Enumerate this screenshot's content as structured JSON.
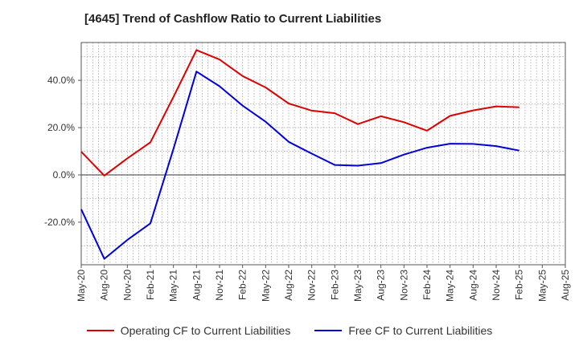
{
  "chart_data": {
    "type": "line",
    "title": "[4645]  Trend of Cashflow Ratio to Current Liabilities",
    "xlabel": "",
    "ylabel": "",
    "x": [
      "May-20",
      "Aug-20",
      "Nov-20",
      "Feb-21",
      "May-21",
      "Aug-21",
      "Nov-21",
      "Feb-22",
      "May-22",
      "Aug-22",
      "Nov-22",
      "Feb-23",
      "May-23",
      "Aug-23",
      "Nov-23",
      "Feb-24",
      "May-24",
      "Aug-24",
      "Nov-24",
      "Feb-25",
      "May-25",
      "Aug-25"
    ],
    "ylim": [
      -38,
      56
    ],
    "yticks": [
      -20,
      0,
      20,
      40
    ],
    "ytick_labels": [
      "-20.0%",
      "0.0%",
      "20.0%",
      "40.0%"
    ],
    "grid": true,
    "legend_position": "bottom",
    "series": [
      {
        "name": "Operating CF to Current Liabilities",
        "color": "#dd0000",
        "values": [
          9.8,
          -0.3,
          7.0,
          13.8,
          33.0,
          52.8,
          48.8,
          41.8,
          37.0,
          30.2,
          27.2,
          26.1,
          21.5,
          24.8,
          22.3,
          18.7,
          25.0,
          27.3,
          29.0,
          28.6,
          null,
          null
        ]
      },
      {
        "name": "Free CF to Current Liabilities",
        "color": "#0000dd",
        "values": [
          -14.5,
          -35.5,
          -27.5,
          -20.5,
          11.0,
          43.7,
          37.5,
          29.3,
          22.5,
          14.0,
          9.0,
          4.2,
          3.9,
          5.0,
          8.6,
          11.5,
          13.2,
          13.1,
          12.2,
          10.3,
          null,
          null
        ]
      }
    ]
  }
}
